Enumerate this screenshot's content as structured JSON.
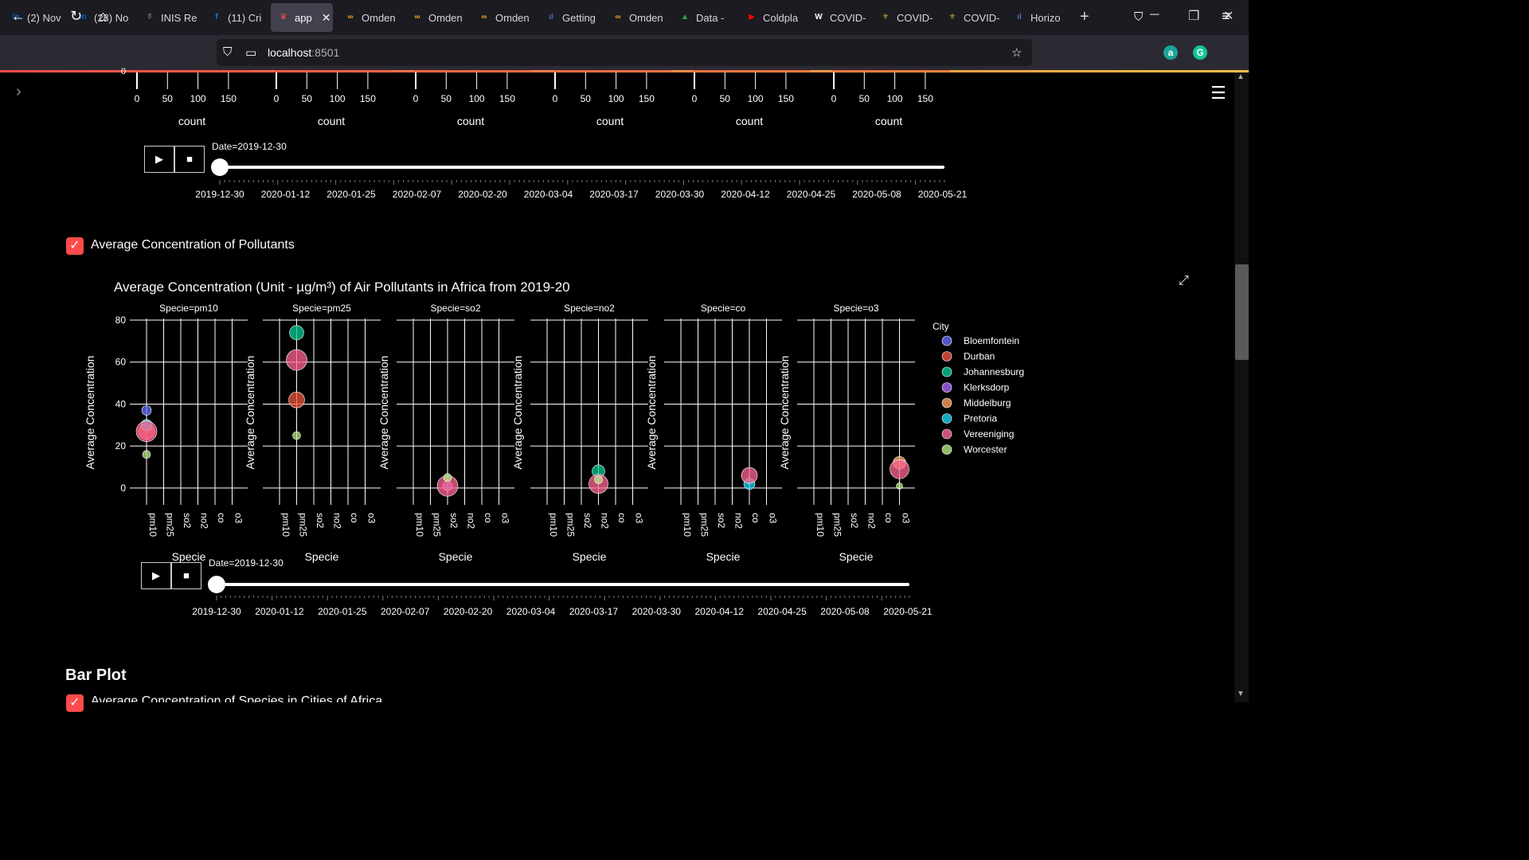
{
  "browser": {
    "tabs": [
      {
        "title": "(2) Nov",
        "icon": "linkedin-icon",
        "color": "#0a66c2",
        "glyph": "in",
        "x": 4,
        "w": 82
      },
      {
        "title": "(28) No",
        "icon": "linkedin-icon",
        "color": "#0a66c2",
        "glyph": "in",
        "x": 88,
        "w": 82
      },
      {
        "title": "INIS Re",
        "icon": "leaf-icon",
        "color": "#8a7a5a",
        "glyph": "⚱",
        "x": 172,
        "w": 82
      },
      {
        "title": "(11) Cri",
        "icon": "facebook-icon",
        "color": "#1877f2",
        "glyph": "f",
        "x": 256,
        "w": 82
      },
      {
        "title": "app",
        "icon": "streamlit-icon",
        "color": "#ff4b4b",
        "glyph": "♛",
        "x": 340,
        "w": 78,
        "active": true
      },
      {
        "title": "Omden",
        "icon": "omdena-icon",
        "color": "#f5a623",
        "glyph": "∞",
        "x": 424,
        "w": 82
      },
      {
        "title": "Omden",
        "icon": "omdena-icon",
        "color": "#f5a623",
        "glyph": "∞",
        "x": 508,
        "w": 82
      },
      {
        "title": "Omden",
        "icon": "omdena-icon",
        "color": "#f5a623",
        "glyph": "∞",
        "x": 592,
        "w": 82
      },
      {
        "title": "Getting",
        "icon": "chart-icon",
        "color": "#4a6fa5",
        "glyph": "ıl",
        "x": 676,
        "w": 82
      },
      {
        "title": "Omden",
        "icon": "omdena-icon",
        "color": "#f5a623",
        "glyph": "∞",
        "x": 760,
        "w": 82
      },
      {
        "title": "Data -",
        "icon": "drive-icon",
        "color": "#34a853",
        "glyph": "▲",
        "x": 844,
        "w": 82
      },
      {
        "title": "Coldpla",
        "icon": "youtube-icon",
        "color": "#ff0000",
        "glyph": "▶",
        "x": 928,
        "w": 82
      },
      {
        "title": "COVID-",
        "icon": "wikipedia-icon",
        "color": "#ffffff",
        "glyph": "W",
        "x": 1012,
        "w": 82
      },
      {
        "title": "COVID-",
        "icon": "gov-icon",
        "color": "#c9a227",
        "glyph": "⚜",
        "x": 1096,
        "w": 82
      },
      {
        "title": "COVID-",
        "icon": "gov-icon",
        "color": "#c9a227",
        "glyph": "⚜",
        "x": 1180,
        "w": 82
      },
      {
        "title": "Horizo",
        "icon": "chart-icon",
        "color": "#4a6fa5",
        "glyph": "ıl",
        "x": 1264,
        "w": 82
      }
    ],
    "url_host": "localhost",
    "url_port": ":8501"
  },
  "top_chart": {
    "axis_title": "count",
    "ticks": [
      "0",
      "50",
      "100",
      "150"
    ],
    "panel_origins": [
      172,
      347,
      522,
      697,
      872,
      1047
    ],
    "player": {
      "label": "Date=2019-12-30",
      "dates": [
        "2019-12-30",
        "2020-01-12",
        "2020-01-25",
        "2020-02-07",
        "2020-02-20",
        "2020-03-04",
        "2020-03-17",
        "2020-03-30",
        "2020-04-12",
        "2020-04-25",
        "2020-05-08",
        "2020-05-21"
      ]
    }
  },
  "section_checkbox_label": "Average Concentration of Pollutants",
  "chart_data": {
    "type": "scatter",
    "title": "Average Concentration (Unit - µg/m³) of Air Pollutants in Africa from 2019-20",
    "ylabel": "Average Concentration",
    "xlabel": "Specie",
    "ylim": [
      -8,
      80
    ],
    "yticks": [
      0,
      20,
      40,
      60,
      80
    ],
    "categories": [
      "pm10",
      "pm25",
      "so2",
      "no2",
      "co",
      "o3"
    ],
    "facets": [
      "Specie=pm10",
      "Specie=pm25",
      "Specie=so2",
      "Specie=no2",
      "Specie=co",
      "Specie=o3"
    ],
    "legend_title": "City",
    "series": [
      {
        "name": "Bloemfontein",
        "color": "#636efa",
        "points": [
          {
            "x": "pm10",
            "y": 37,
            "size": 6
          }
        ]
      },
      {
        "name": "Durban",
        "color": "#ef553b",
        "points": [
          {
            "x": "pm10",
            "y": 27,
            "size": 10
          },
          {
            "x": "pm25",
            "y": 42,
            "size": 10
          }
        ]
      },
      {
        "name": "Johannesburg",
        "color": "#00cc96",
        "points": [
          {
            "x": "pm25",
            "y": 74,
            "size": 9
          },
          {
            "x": "no2",
            "y": 8,
            "size": 8
          }
        ]
      },
      {
        "name": "Klerksdorp",
        "color": "#ab63fa",
        "points": [
          {
            "x": "so2",
            "y": 1,
            "size": 6
          }
        ]
      },
      {
        "name": "Middelburg",
        "color": "#ffa15a",
        "points": [
          {
            "x": "o3",
            "y": 12,
            "size": 8
          }
        ]
      },
      {
        "name": "Pretoria",
        "color": "#19d3f3",
        "points": [
          {
            "x": "pm10",
            "y": 30,
            "size": 7
          },
          {
            "x": "co",
            "y": 2,
            "size": 7
          }
        ]
      },
      {
        "name": "Vereeniging",
        "color": "#ff6692",
        "points": [
          {
            "x": "pm10",
            "y": 27,
            "size": 13
          },
          {
            "x": "pm25",
            "y": 61,
            "size": 13
          },
          {
            "x": "so2",
            "y": 1,
            "size": 13
          },
          {
            "x": "no2",
            "y": 2,
            "size": 12
          },
          {
            "x": "co",
            "y": 6,
            "size": 10
          },
          {
            "x": "o3",
            "y": 9,
            "size": 12
          }
        ]
      },
      {
        "name": "Worcester",
        "color": "#b6e880",
        "points": [
          {
            "x": "pm10",
            "y": 16,
            "size": 5
          },
          {
            "x": "pm25",
            "y": 25,
            "size": 5
          },
          {
            "x": "so2",
            "y": 5,
            "size": 5
          },
          {
            "x": "no2",
            "y": 4,
            "size": 5
          },
          {
            "x": "o3",
            "y": 1,
            "size": 4
          }
        ]
      }
    ],
    "player": {
      "label": "Date=2019-12-30",
      "dates": [
        "2019-12-30",
        "2020-01-12",
        "2020-01-25",
        "2020-02-07",
        "2020-02-20",
        "2020-03-04",
        "2020-03-17",
        "2020-03-30",
        "2020-04-12",
        "2020-04-25",
        "2020-05-08",
        "2020-05-21"
      ]
    }
  },
  "bar_section_heading": "Bar Plot",
  "bar_checkbox_label": "Average Concentration of Species in Cities of Africa"
}
